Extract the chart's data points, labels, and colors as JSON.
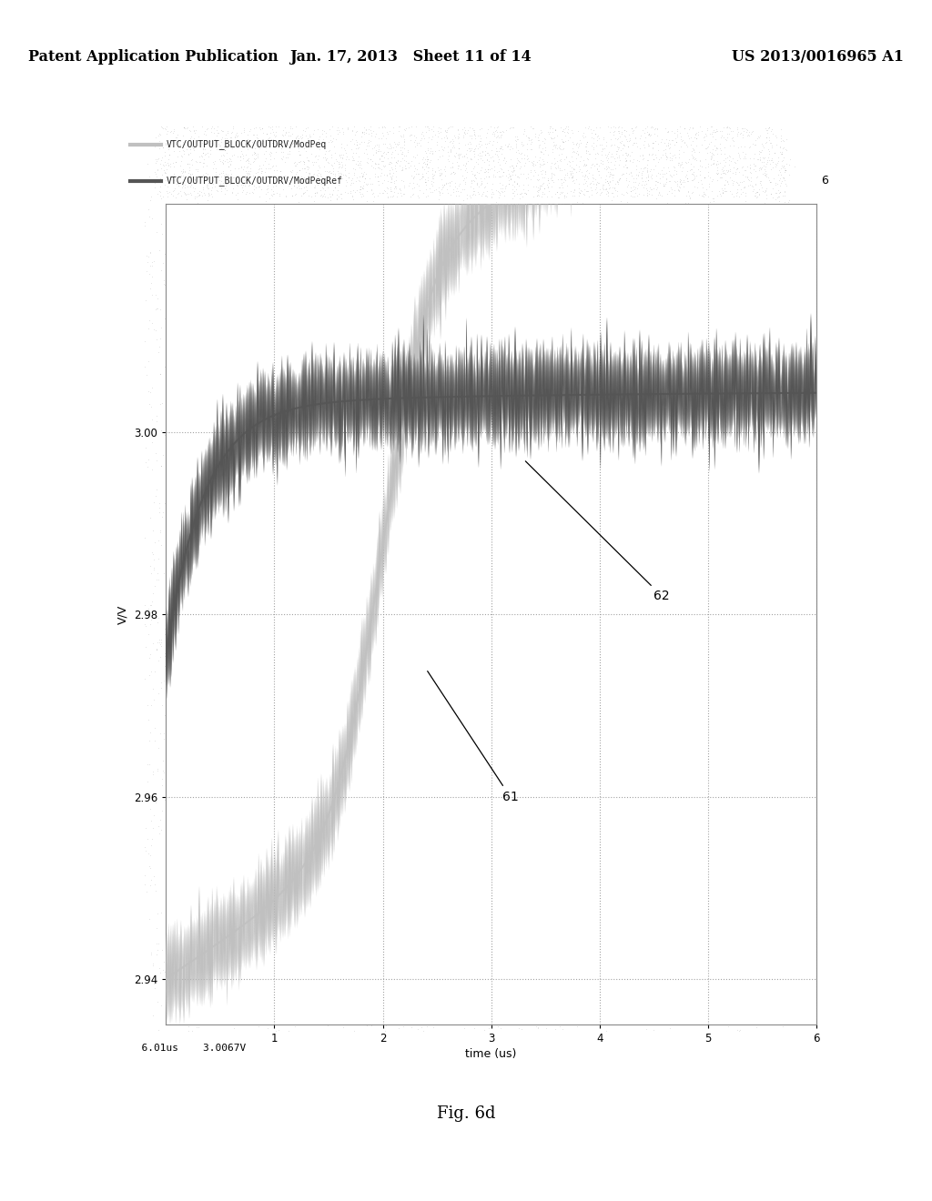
{
  "title": "",
  "xlabel": "time (us)",
  "ylabel": "V/V",
  "xlim": [
    0,
    6
  ],
  "ylim": [
    2.935,
    3.025
  ],
  "yticks": [
    2.94,
    2.96,
    2.98,
    3.0
  ],
  "xticks": [
    1,
    2,
    3,
    4,
    5,
    6
  ],
  "legend_line1": "VTC/OUTPUT_BLOCK/OUTDRV/ModPeq",
  "legend_line2": "VTC/OUTPUT_BLOCK/OUTDRV/ModPeqRef",
  "label_61": "61",
  "label_62": "62",
  "status_bar": "  6.01us    3.0067V",
  "caption": "Fig. 6d",
  "bg_outer": "#aaaaaa",
  "bg_plot": "#ffffff",
  "curve1_color": "#c0c0c0",
  "curve2_color": "#555555",
  "header_text_left": "Patent Application Publication",
  "header_text_mid": "Jan. 17, 2013   Sheet 11 of 14",
  "header_text_right": "US 2013/0016965 A1",
  "right_label": "6"
}
